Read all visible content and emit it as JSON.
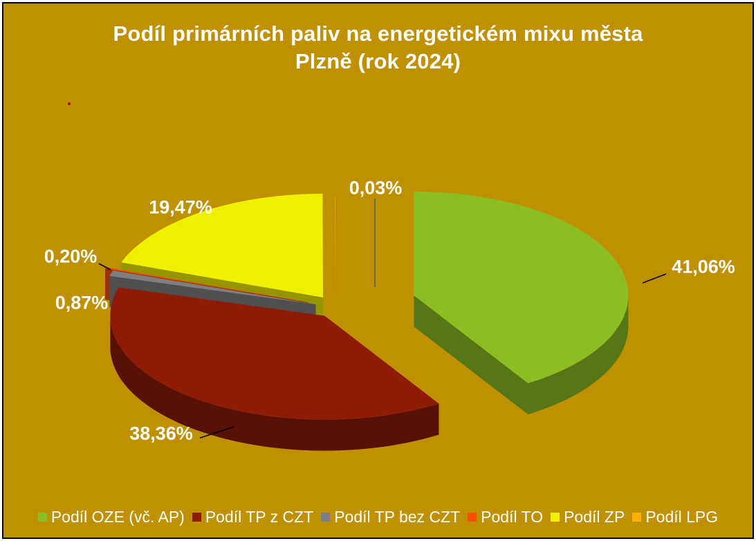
{
  "title": {
    "line1": "Podíl primárních paliv na energetickém mixu města",
    "line2": "Plzně (rok 2024)"
  },
  "chart_data": {
    "type": "pie",
    "style": "3d-exploded-pie",
    "title": "Podíl primárních paliv na energetickém mixu města Plzně (rok 2024)",
    "legend_position": "bottom",
    "background_color": "#BF9000",
    "labels": [
      "Podíl OZE (vč. AP)",
      "Podíl TP z CZT",
      "Podíl TP bez CZT",
      "Podíl TO",
      "Podíl ZP",
      "Podíl LPG"
    ],
    "values": [
      41.06,
      38.36,
      0.87,
      0.2,
      19.47,
      0.03
    ],
    "value_labels": [
      "41,06%",
      "38,36%",
      "0,87%",
      "0,20%",
      "19,47%",
      "0,03%"
    ],
    "colors": [
      "#8CBE23",
      "#8E1B06",
      "#7F7F7F",
      "#FF4F02",
      "#F0F000",
      "#FFB200"
    ],
    "text_color": "#FFFFFF"
  }
}
